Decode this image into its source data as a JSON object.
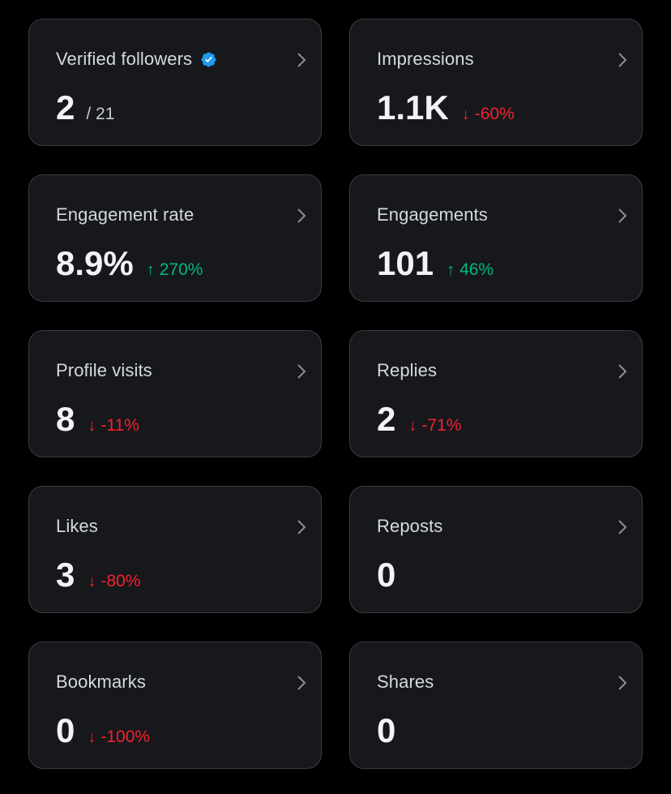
{
  "cards": [
    {
      "title": "Verified followers",
      "value": "2",
      "total": "/ 21"
    },
    {
      "title": "Impressions",
      "value": "1.1K",
      "delta": "-60%",
      "direction": "down"
    },
    {
      "title": "Engagement rate",
      "value": "8.9%",
      "delta": "270%",
      "direction": "up"
    },
    {
      "title": "Engagements",
      "value": "101",
      "delta": "46%",
      "direction": "up"
    },
    {
      "title": "Profile visits",
      "value": "8",
      "delta": "-11%",
      "direction": "down"
    },
    {
      "title": "Replies",
      "value": "2",
      "delta": "-71%",
      "direction": "down"
    },
    {
      "title": "Likes",
      "value": "3",
      "delta": "-80%",
      "direction": "down"
    },
    {
      "title": "Reposts",
      "value": "0"
    },
    {
      "title": "Bookmarks",
      "value": "0",
      "delta": "-100%",
      "direction": "down"
    },
    {
      "title": "Shares",
      "value": "0"
    }
  ],
  "arrows": {
    "up": "↑",
    "down": "↓"
  },
  "colors": {
    "background": "#000000",
    "card": "#16181c",
    "border": "#3a3d42",
    "up": "#00ba7c",
    "down": "#f4212e",
    "verified": "#1d9bf0"
  },
  "icons": {
    "verified": "verified-badge-icon",
    "chevron": "chevron-right-icon"
  }
}
